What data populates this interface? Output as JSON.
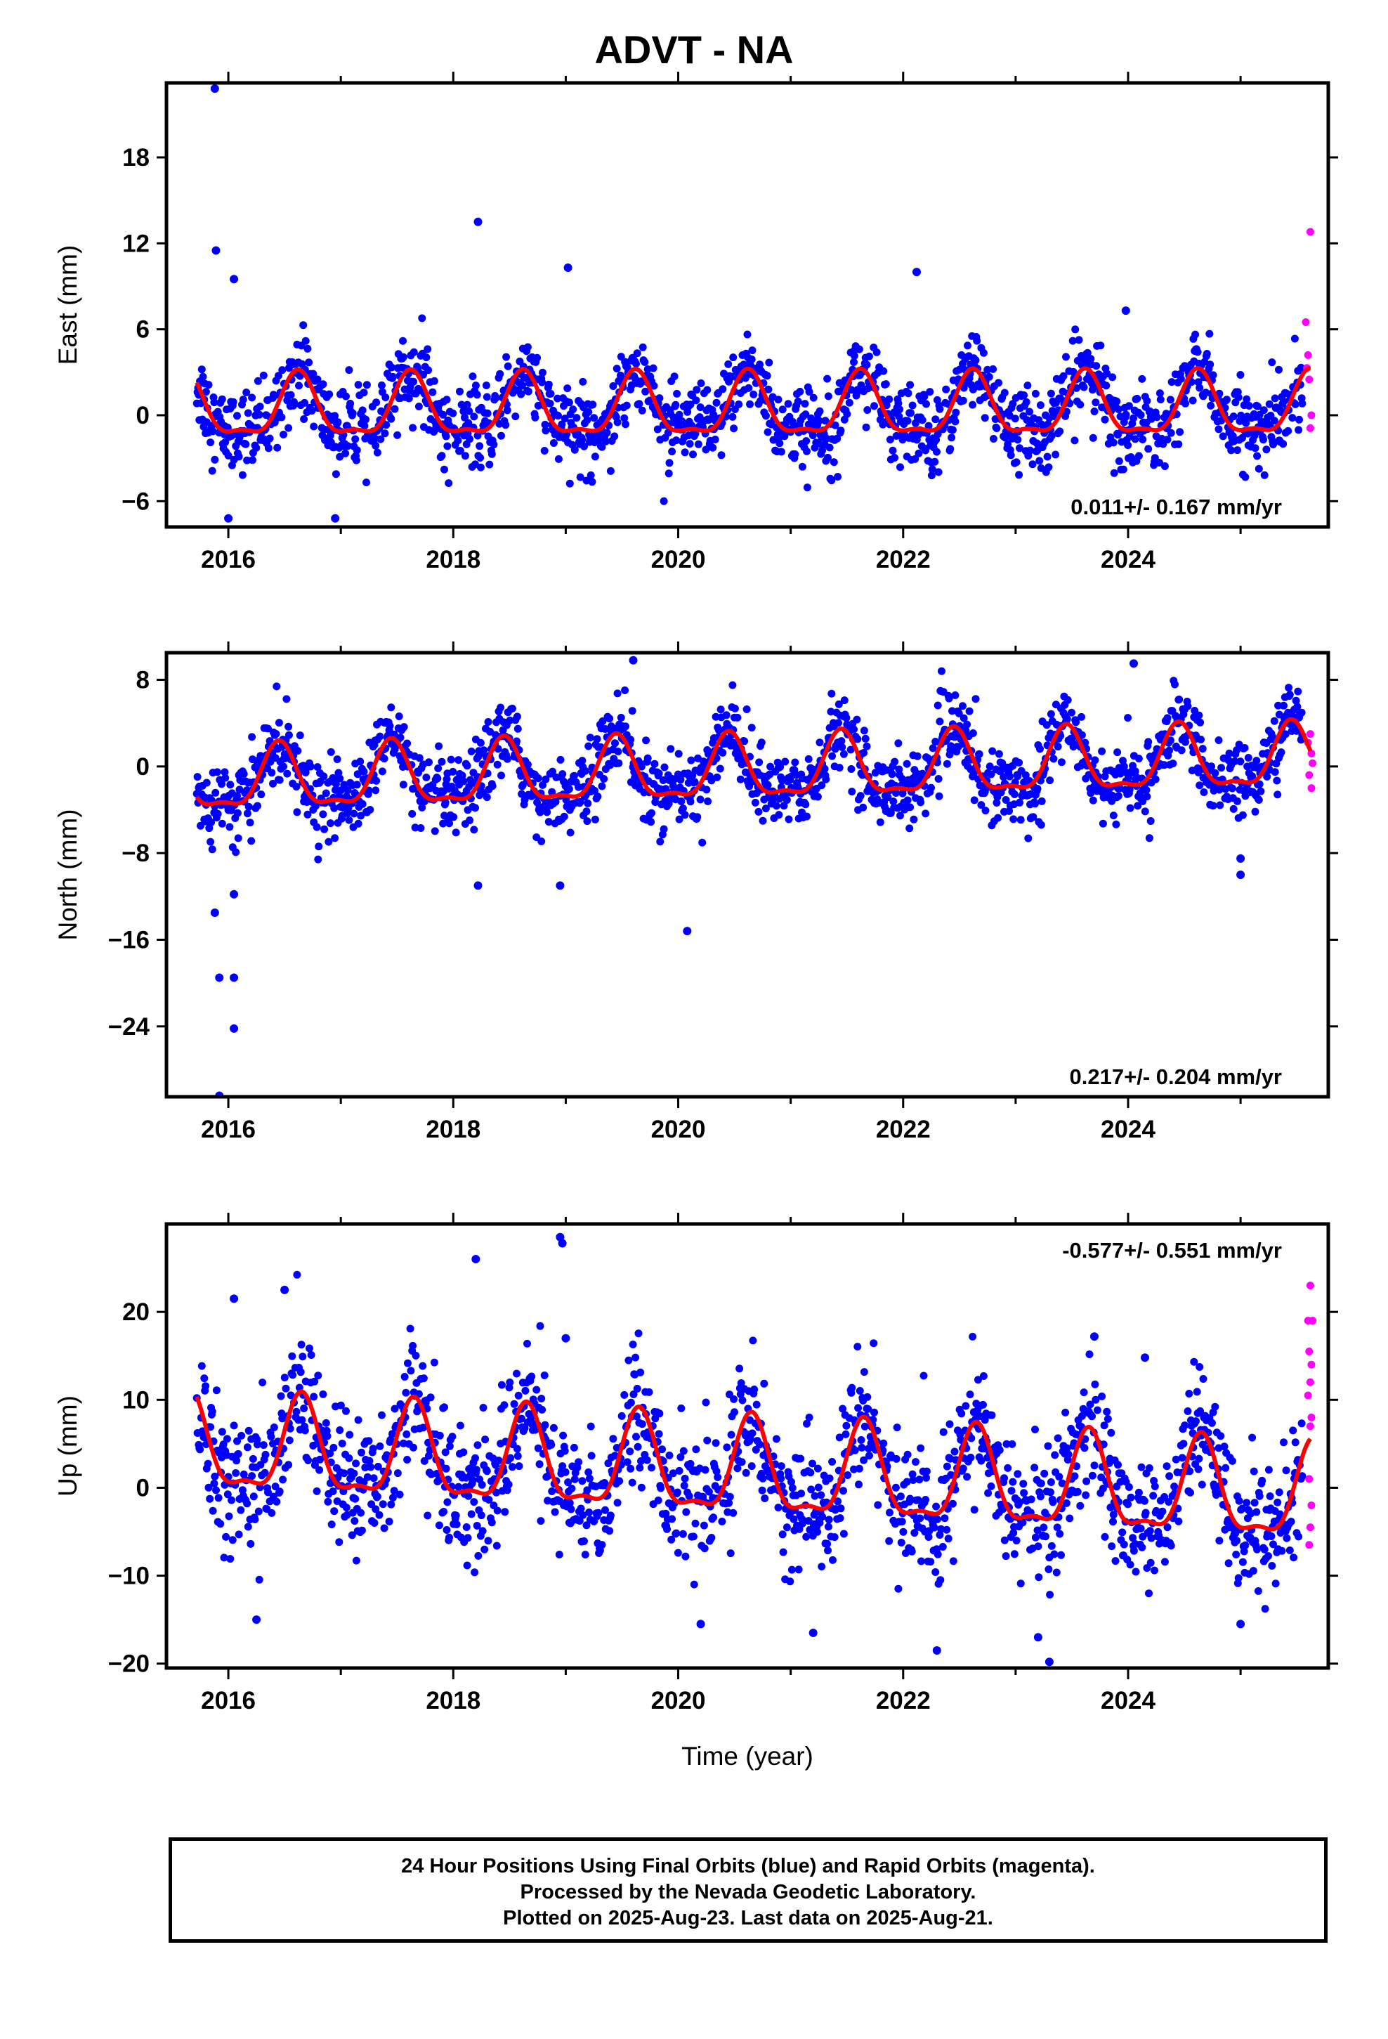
{
  "title": "ADVT - NA",
  "caption": {
    "lines": [
      "24 Hour Positions Using Final Orbits (blue) and Rapid Orbits (magenta).",
      "Processed by the Nevada Geodetic Laboratory.",
      "Plotted on 2025-Aug-23. Last data on 2025-Aug-21."
    ]
  },
  "colors": {
    "final_orbits": "#0000ff",
    "rapid_orbits": "#ff00ff",
    "model_fit": "#ff0000",
    "frame": "#000000"
  },
  "chart_data": [
    {
      "type": "scatter",
      "component": "East",
      "ylabel": "East (mm)",
      "xlabel": "",
      "xlim": [
        2015.45,
        2025.78
      ],
      "ylim": [
        -7.8,
        23.2
      ],
      "yticks": [
        -6,
        0,
        6,
        12,
        18
      ],
      "xticks": [
        2016,
        2018,
        2020,
        2022,
        2024
      ],
      "grid": false,
      "rate_label": "0.011+/- 0.167 mm/yr",
      "rate_position": "bottom-right",
      "model": {
        "amplitude": 2.1,
        "phase_peak": 0.62,
        "offset": 0.4,
        "trend_mm_per_yr": 0.011,
        "noise_sd": 1.4
      },
      "outliers": [
        [
          2015.88,
          22.8
        ],
        [
          2015.89,
          11.5
        ],
        [
          2016.05,
          9.5
        ],
        [
          2018.22,
          13.5
        ],
        [
          2019.02,
          10.3
        ],
        [
          2022.12,
          10.0
        ],
        [
          2023.98,
          7.3
        ],
        [
          2016.0,
          -7.2
        ],
        [
          2016.95,
          -7.2
        ]
      ],
      "rapid_points": [
        [
          2025.62,
          12.8
        ],
        [
          2025.58,
          6.5
        ],
        [
          2025.6,
          4.2
        ],
        [
          2025.61,
          2.5
        ],
        [
          2025.63,
          0.0
        ],
        [
          2025.62,
          -0.9
        ],
        [
          2025.59,
          3.3
        ]
      ],
      "series": [
        {
          "name": "Final Orbits"
        },
        {
          "name": "Rapid Orbits"
        },
        {
          "name": "Model"
        }
      ]
    },
    {
      "type": "scatter",
      "component": "North",
      "ylabel": "North (mm)",
      "xlabel": "",
      "xlim": [
        2015.45,
        2025.78
      ],
      "ylim": [
        -30.5,
        10.5
      ],
      "yticks": [
        -24,
        -16,
        -8,
        0,
        8
      ],
      "xticks": [
        2016,
        2018,
        2020,
        2022,
        2024
      ],
      "grid": false,
      "rate_label": "0.217+/- 0.204 mm/yr",
      "rate_position": "bottom-right",
      "model": {
        "amplitude": 2.8,
        "phase_peak": 0.45,
        "offset": -0.6,
        "trend_mm_per_yr": 0.217,
        "noise_sd": 1.7
      },
      "outliers": [
        [
          2015.88,
          -13.5
        ],
        [
          2015.92,
          -19.5
        ],
        [
          2016.05,
          -19.5
        ],
        [
          2016.05,
          -24.2
        ],
        [
          2016.05,
          -11.8
        ],
        [
          2015.92,
          -30.4
        ],
        [
          2018.22,
          -11.0
        ],
        [
          2018.95,
          -11.0
        ],
        [
          2019.6,
          9.8
        ],
        [
          2020.08,
          -15.2
        ],
        [
          2024.05,
          9.5
        ],
        [
          2025.0,
          -10.0
        ],
        [
          2025.0,
          -8.5
        ]
      ],
      "rapid_points": [
        [
          2025.62,
          3.0
        ],
        [
          2025.63,
          1.2
        ],
        [
          2025.61,
          -0.8
        ],
        [
          2025.63,
          -2.0
        ],
        [
          2025.6,
          2.2
        ],
        [
          2025.64,
          0.3
        ]
      ],
      "series": [
        {
          "name": "Final Orbits"
        },
        {
          "name": "Rapid Orbits"
        },
        {
          "name": "Model"
        }
      ]
    },
    {
      "type": "scatter",
      "component": "Up",
      "ylabel": "Up (mm)",
      "xlabel": "Time (year)",
      "xlim": [
        2015.45,
        2025.78
      ],
      "ylim": [
        -20.5,
        30.0
      ],
      "yticks": [
        -20,
        -10,
        0,
        10,
        20
      ],
      "xticks": [
        2016,
        2018,
        2020,
        2022,
        2024
      ],
      "grid": false,
      "rate_label": "-0.577+/- 0.551 mm/yr",
      "rate_position": "top-right",
      "model": {
        "amplitude": 5.2,
        "phase_peak": 0.65,
        "offset": 2.0,
        "trend_mm_per_yr": -0.577,
        "noise_sd": 3.6
      },
      "outliers": [
        [
          2016.05,
          21.5
        ],
        [
          2016.5,
          22.5
        ],
        [
          2016.25,
          -15.0
        ],
        [
          2018.2,
          26.0
        ],
        [
          2018.95,
          28.5
        ],
        [
          2018.97,
          27.8
        ],
        [
          2019.0,
          17.0
        ],
        [
          2020.2,
          -15.5
        ],
        [
          2021.2,
          -16.5
        ],
        [
          2022.3,
          -18.5
        ],
        [
          2023.2,
          -17.0
        ],
        [
          2023.3,
          -19.8
        ],
        [
          2023.7,
          17.2
        ],
        [
          2024.15,
          14.8
        ],
        [
          2025.0,
          -15.5
        ]
      ],
      "rapid_points": [
        [
          2025.62,
          23.0
        ],
        [
          2025.6,
          19.0
        ],
        [
          2025.64,
          19.0
        ],
        [
          2025.61,
          15.5
        ],
        [
          2025.63,
          14.0
        ],
        [
          2025.62,
          12.0
        ],
        [
          2025.6,
          10.5
        ],
        [
          2025.63,
          8.0
        ],
        [
          2025.62,
          7.0
        ],
        [
          2025.61,
          1.0
        ],
        [
          2025.63,
          -2.0
        ],
        [
          2025.62,
          -4.5
        ],
        [
          2025.61,
          -6.5
        ]
      ],
      "series": [
        {
          "name": "Final Orbits"
        },
        {
          "name": "Rapid Orbits"
        },
        {
          "name": "Model"
        }
      ]
    }
  ]
}
